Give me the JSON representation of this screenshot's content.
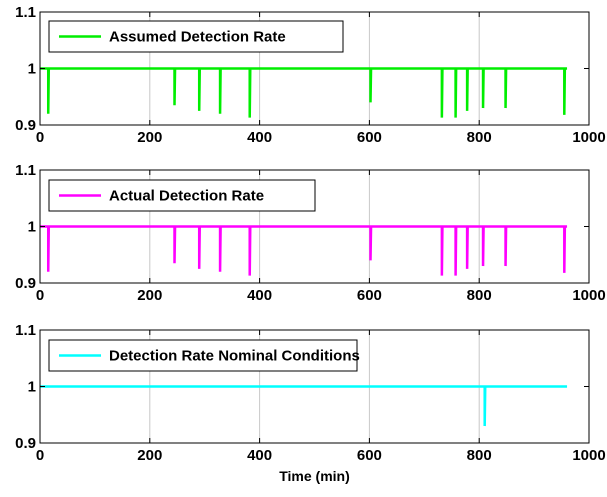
{
  "chart_data": [
    {
      "type": "line",
      "xlim": [
        0,
        1000
      ],
      "ylim": [
        0.9,
        1.1
      ],
      "xticks": [
        "0",
        "200",
        "400",
        "600",
        "800",
        "1000"
      ],
      "yticks": [
        "0.9",
        "1",
        "1.1"
      ],
      "grid": "x-only",
      "legend_position": "top-left",
      "xlabel": "",
      "color": "#00ee00",
      "series": [
        {
          "name": "Assumed Detection Rate",
          "baseline": 1,
          "x_range": [
            0,
            960
          ],
          "dips": [
            {
              "x": 15,
              "y": 0.92
            },
            {
              "x": 245,
              "y": 0.935
            },
            {
              "x": 290,
              "y": 0.925
            },
            {
              "x": 328,
              "y": 0.92
            },
            {
              "x": 382,
              "y": 0.913
            },
            {
              "x": 602,
              "y": 0.94
            },
            {
              "x": 732,
              "y": 0.913
            },
            {
              "x": 757,
              "y": 0.913
            },
            {
              "x": 778,
              "y": 0.925
            },
            {
              "x": 807,
              "y": 0.93
            },
            {
              "x": 848,
              "y": 0.93
            },
            {
              "x": 955,
              "y": 0.918
            }
          ]
        }
      ]
    },
    {
      "type": "line",
      "xlim": [
        0,
        1000
      ],
      "ylim": [
        0.9,
        1.1
      ],
      "xticks": [
        "0",
        "200",
        "400",
        "600",
        "800",
        "1000"
      ],
      "yticks": [
        "0.9",
        "1",
        "1.1"
      ],
      "grid": "x-only",
      "legend_position": "top-left",
      "xlabel": "",
      "color": "#ff00ff",
      "series": [
        {
          "name": "Actual Detection Rate",
          "baseline": 1,
          "x_range": [
            0,
            960
          ],
          "dips": [
            {
              "x": 15,
              "y": 0.92
            },
            {
              "x": 245,
              "y": 0.935
            },
            {
              "x": 290,
              "y": 0.925
            },
            {
              "x": 328,
              "y": 0.92
            },
            {
              "x": 382,
              "y": 0.913
            },
            {
              "x": 602,
              "y": 0.94
            },
            {
              "x": 732,
              "y": 0.913
            },
            {
              "x": 757,
              "y": 0.913
            },
            {
              "x": 778,
              "y": 0.925
            },
            {
              "x": 807,
              "y": 0.93
            },
            {
              "x": 848,
              "y": 0.93
            },
            {
              "x": 955,
              "y": 0.918
            }
          ]
        }
      ]
    },
    {
      "type": "line",
      "xlim": [
        0,
        1000
      ],
      "ylim": [
        0.9,
        1.1
      ],
      "xticks": [
        "0",
        "200",
        "400",
        "600",
        "800",
        "1000"
      ],
      "yticks": [
        "0.9",
        "1",
        "1.1"
      ],
      "grid": "x-only",
      "legend_position": "top-left",
      "xlabel": "Time (min)",
      "color": "#00ffff",
      "series": [
        {
          "name": "Detection Rate Nominal Conditions",
          "baseline": 1,
          "x_range": [
            0,
            960
          ],
          "dips": [
            {
              "x": 810,
              "y": 0.93
            }
          ]
        }
      ]
    }
  ]
}
